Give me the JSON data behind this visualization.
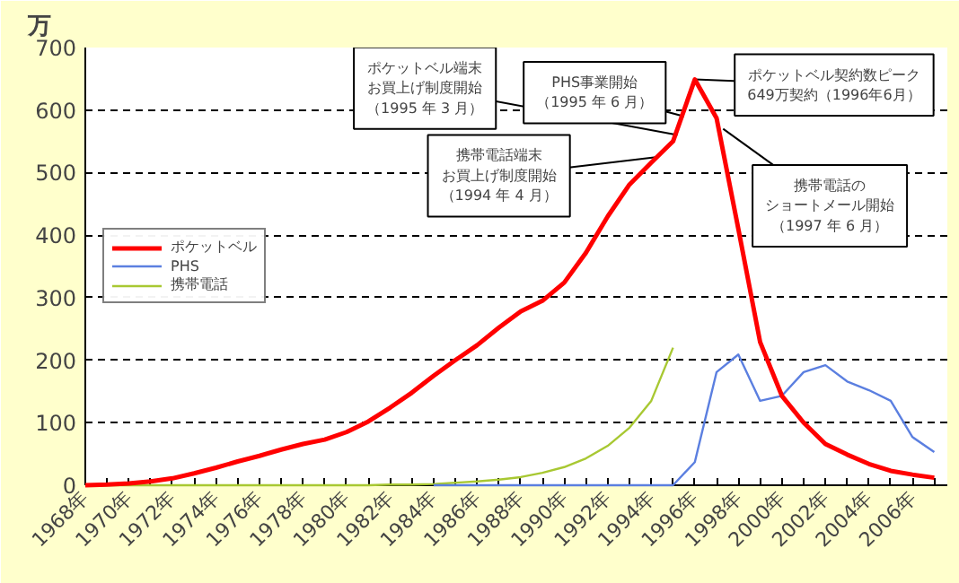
{
  "chart_data": {
    "type": "line",
    "ylabel": "万",
    "x": [
      1968,
      1969,
      1970,
      1971,
      1972,
      1973,
      1974,
      1975,
      1976,
      1977,
      1978,
      1979,
      1980,
      1981,
      1982,
      1983,
      1984,
      1985,
      1986,
      1987,
      1988,
      1989,
      1990,
      1991,
      1992,
      1993,
      1994,
      1995,
      1996,
      1997,
      1998,
      1999,
      2000,
      2001,
      2002,
      2003,
      2004,
      2005,
      2006,
      2007
    ],
    "series": [
      {
        "name": "ポケットベル",
        "color": "#ff0000",
        "values": [
          0,
          1,
          3,
          6,
          11,
          19,
          28,
          38,
          47,
          57,
          66,
          73,
          85,
          102,
          124,
          148,
          175,
          200,
          224,
          252,
          278,
          295,
          324,
          372,
          430,
          481,
          516,
          550,
          649,
          587,
          410,
          229,
          143,
          100,
          66,
          49,
          34,
          23,
          17,
          12
        ]
      },
      {
        "name": "PHS",
        "color": "#5b7fe0",
        "values": [
          null,
          null,
          null,
          null,
          null,
          null,
          null,
          null,
          null,
          null,
          null,
          null,
          null,
          null,
          null,
          null,
          0,
          0,
          0,
          0,
          0,
          0,
          0,
          0,
          0,
          0,
          0,
          0,
          37,
          181,
          209,
          135,
          143,
          181,
          192,
          166,
          152,
          135,
          77,
          53
        ]
      },
      {
        "name": "携帯電話",
        "color": "#a8c832",
        "values": [
          0,
          0,
          0,
          0,
          0,
          0,
          0,
          0,
          0,
          0,
          0,
          0,
          0,
          0,
          1,
          1,
          2,
          4,
          6,
          9,
          13,
          20,
          29,
          43,
          63,
          92,
          135,
          220,
          null,
          null,
          null,
          null,
          null,
          null,
          null,
          null,
          null,
          null,
          null,
          null
        ]
      }
    ],
    "xlim": [
      1968,
      2007.6
    ],
    "xticks": [
      {
        "value": 1968,
        "label": "1968年"
      },
      {
        "value": 1969,
        "label": null
      },
      {
        "value": 1970,
        "label": "1970年"
      },
      {
        "value": 1971,
        "label": null
      },
      {
        "value": 1972,
        "label": "1972年"
      },
      {
        "value": 1973,
        "label": null
      },
      {
        "value": 1974,
        "label": "1974年"
      },
      {
        "value": 1975,
        "label": null
      },
      {
        "value": 1976,
        "label": "1976年"
      },
      {
        "value": 1977,
        "label": null
      },
      {
        "value": 1978,
        "label": "1978年"
      },
      {
        "value": 1979,
        "label": null
      },
      {
        "value": 1980,
        "label": "1980年"
      },
      {
        "value": 1981,
        "label": null
      },
      {
        "value": 1982,
        "label": "1982年"
      },
      {
        "value": 1983,
        "label": null
      },
      {
        "value": 1984,
        "label": "1984年"
      },
      {
        "value": 1985,
        "label": null
      },
      {
        "value": 1986,
        "label": "1986年"
      },
      {
        "value": 1987,
        "label": null
      },
      {
        "value": 1988,
        "label": "1988年"
      },
      {
        "value": 1989,
        "label": null
      },
      {
        "value": 1990,
        "label": "1990年"
      },
      {
        "value": 1991,
        "label": null
      },
      {
        "value": 1992,
        "label": "1992年"
      },
      {
        "value": 1993,
        "label": null
      },
      {
        "value": 1994,
        "label": "1994年"
      },
      {
        "value": 1995,
        "label": null
      },
      {
        "value": 1996,
        "label": "1996年"
      },
      {
        "value": 1997,
        "label": null
      },
      {
        "value": 1998,
        "label": "1998年"
      },
      {
        "value": 1999,
        "label": null
      },
      {
        "value": 2000,
        "label": "2000年"
      },
      {
        "value": 2001,
        "label": null
      },
      {
        "value": 2002,
        "label": "2002年"
      },
      {
        "value": 2003,
        "label": null
      },
      {
        "value": 2004,
        "label": "2004年"
      },
      {
        "value": 2005,
        "label": null
      },
      {
        "value": 2006,
        "label": "2006年"
      },
      {
        "value": 2007,
        "label": null
      }
    ],
    "ylim": [
      0,
      700
    ],
    "yticks": [
      0,
      100,
      200,
      300,
      400,
      500,
      600,
      700
    ],
    "grid": "y",
    "legend": "left",
    "marker": "none",
    "line_style": "solid",
    "annotations": [
      {
        "text": "ポケットベル端末お買上げ制度開始（1995 年 3 月）",
        "x": 1995.2,
        "y": 560
      },
      {
        "text": "PHS事業開始（1995 年 6 月）",
        "x": 1995.5,
        "y": 590
      },
      {
        "text": "携帯電話端末お買上げ制度開始（1994 年 4 月）",
        "x": 1994.3,
        "y": 525
      },
      {
        "text": "ポケットベル契約数ピーク649万契約（1996年6月）",
        "x": 1996,
        "y": 649
      },
      {
        "text": "携帯電話のショートメール開始（1997 年 6 月）",
        "x": 1997.3,
        "y": 570
      }
    ]
  }
}
